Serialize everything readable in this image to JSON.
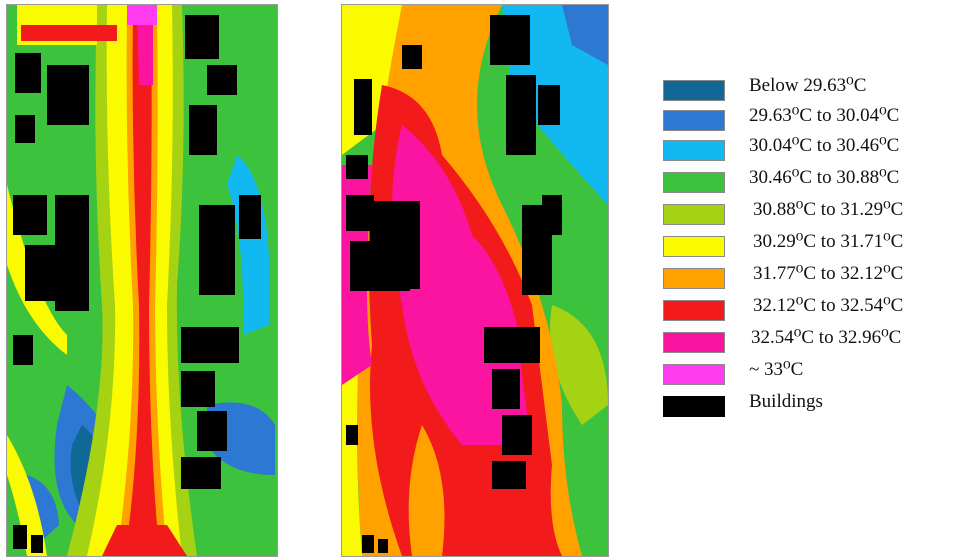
{
  "legend": {
    "items": [
      {
        "label": "Below 29.63⁰C",
        "color": "#0f6896"
      },
      {
        "label": "29.63⁰C to 30.04⁰C",
        "color": "#2d78d2"
      },
      {
        "label": "30.04⁰C to 30.46⁰C",
        "color": "#12b9f0"
      },
      {
        "label": "30.46⁰C to 30.88⁰C",
        "color": "#3cc23c"
      },
      {
        "label": "30.88⁰C to 31.29⁰C",
        "color": "#a6d214"
      },
      {
        "label": "30.29⁰C to 31.71⁰C",
        "color": "#fafa00"
      },
      {
        "label": "31.77⁰C to 32.12⁰C",
        "color": "#ffa200"
      },
      {
        "label": "32.12⁰C to 32.54⁰C",
        "color": "#f21a1a"
      },
      {
        "label": "32.54⁰C to 32.96⁰C",
        "color": "#fa14a0"
      },
      {
        "label": "~  33⁰C",
        "color": "#ff3cf0"
      },
      {
        "label": "Buildings",
        "color": "#000000"
      }
    ]
  }
}
